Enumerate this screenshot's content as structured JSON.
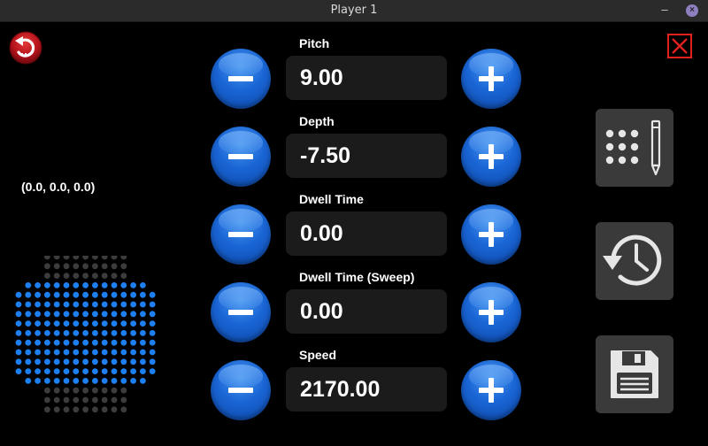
{
  "window": {
    "title": "Player 1",
    "minimize_glyph": "–",
    "close_glyph": "×"
  },
  "coords": "(0.0, 0.0, 0.0)",
  "params": [
    {
      "label": "Pitch",
      "value": "9.00"
    },
    {
      "label": "Depth",
      "value": "-7.50"
    },
    {
      "label": "Dwell Time",
      "value": "0.00"
    },
    {
      "label": "Dwell Time (Sweep)",
      "value": "0.00"
    },
    {
      "label": "Speed",
      "value": "2170.00"
    }
  ],
  "icons": {
    "back": "undo-arrow-icon",
    "close": "close-x-icon",
    "keypad": "keypad-edit-icon",
    "history": "history-icon",
    "save": "save-icon",
    "decrement": "minus-icon",
    "increment": "plus-icon"
  },
  "colors": {
    "button_blue": "#1a66d6",
    "grid_active": "#1e7ff0",
    "grid_inactive": "#3c3c3c",
    "back_red": "#c0141c",
    "close_red": "#e0201a",
    "tile_bg": "#3a3a3a",
    "value_bg": "#1b1b1b"
  }
}
